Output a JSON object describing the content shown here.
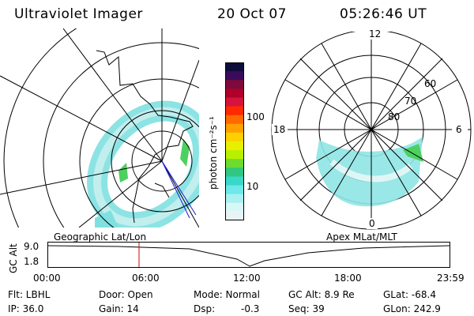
{
  "header": {
    "instrument": "Ultraviolet Imager",
    "date": "20 Oct 07",
    "time": "05:26:46 UT"
  },
  "colorbar": {
    "unit_label": "photon cm⁻²s⁻¹",
    "ticks": [
      "100",
      "10"
    ],
    "colors": [
      "#0d0d3a",
      "#3b0a5a",
      "#7d0a3c",
      "#b0002a",
      "#d4143a",
      "#ff2a00",
      "#ff6a00",
      "#ffa000",
      "#ffd000",
      "#e8f000",
      "#b8f000",
      "#6edc2e",
      "#30c880",
      "#3ad8c8",
      "#6ee8e8",
      "#aaf0f0",
      "#d8f8f8",
      "#e8f4f4"
    ]
  },
  "left_map": {
    "label": "Geographic Lat/Lon"
  },
  "right_map": {
    "label": "Apex MLat/MLT",
    "mlt_labels": {
      "top": "12",
      "left": "18",
      "right": "6",
      "bottom": "0"
    },
    "lat_labels": [
      "60",
      "70",
      "80"
    ]
  },
  "altitude_plot": {
    "ylabel": "GC Alt",
    "yticks": [
      "9.0",
      "1.8"
    ],
    "xticks": [
      "00:00",
      "06:00",
      "12:00",
      "18:00",
      "23:59"
    ],
    "marker_color": "#d40000"
  },
  "info": {
    "flt": "Flt: LBHL",
    "ip": "IP: 36.0",
    "door": "Door: Open",
    "gain": "Gain: 14",
    "mode": "Mode: Normal",
    "dsp": "Dsp:",
    "dsp_value": "-0.3",
    "gc_alt": "GC Alt: 8.9 Re",
    "seq": "Seq: 39",
    "glat": "GLat: -68.4",
    "glon": "GLon: 242.9"
  }
}
